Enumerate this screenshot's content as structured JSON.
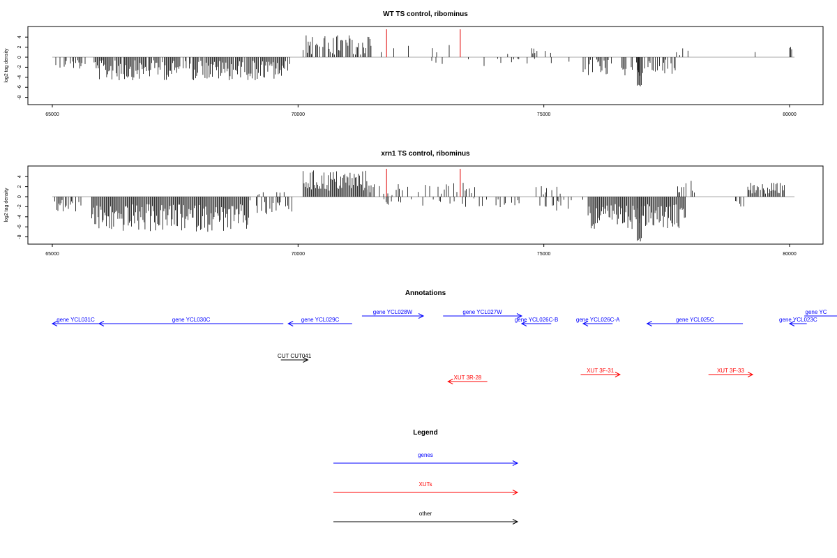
{
  "chart_data": [
    {
      "type": "bar",
      "title": "WT TS control, ribominus",
      "ylabel": "log2 tag density",
      "xlim": [
        64000,
        81000
      ],
      "ylim": [
        -10,
        6
      ],
      "x_ticks": [
        "65000",
        "70000",
        "75000",
        "80000"
      ],
      "y_ticks": [
        "4",
        "2",
        "0",
        "-2",
        "-4",
        "-6",
        "-8"
      ],
      "x_tick_values": [
        65000,
        70000,
        75000,
        80000
      ],
      "y_tick_values": [
        4,
        2,
        0,
        -2,
        -4,
        -6,
        -8
      ],
      "baseline": [
        65000,
        80100
      ],
      "marker_lines": [
        {
          "x": 71800,
          "color": "#e00000"
        },
        {
          "x": 73300,
          "color": "#e00000"
        }
      ],
      "segments": [
        {
          "from": 65050,
          "to": 65700,
          "sign": -1,
          "min": 0.3,
          "max": 2.3,
          "density": 0.55
        },
        {
          "from": 65850,
          "to": 69850,
          "sign": -1,
          "min": 0.6,
          "max": 4.6,
          "density": 0.85
        },
        {
          "from": 70100,
          "to": 71500,
          "sign": 1,
          "min": 0.5,
          "max": 4.5,
          "density": 0.75
        },
        {
          "from": 71500,
          "to": 73500,
          "sign": 1,
          "min": 0.3,
          "max": 2.5,
          "density": 0.12
        },
        {
          "from": 72400,
          "to": 74300,
          "sign": -1,
          "min": 0.3,
          "max": 1.8,
          "density": 0.1
        },
        {
          "from": 74200,
          "to": 75300,
          "sign": 1,
          "min": 0.3,
          "max": 1.9,
          "density": 0.08
        },
        {
          "from": 74300,
          "to": 75800,
          "sign": -1,
          "min": 0.3,
          "max": 1.6,
          "density": 0.1
        },
        {
          "from": 75800,
          "to": 77700,
          "sign": -1,
          "min": 0.4,
          "max": 3.8,
          "density": 0.55
        },
        {
          "from": 76900,
          "to": 77000,
          "sign": -1,
          "min": 5.5,
          "max": 5.8,
          "density": 1
        },
        {
          "from": 77400,
          "to": 78000,
          "sign": 1,
          "min": 0.4,
          "max": 2.0,
          "density": 0.25
        },
        {
          "from": 79300,
          "to": 79320,
          "sign": 1,
          "min": 1.0,
          "max": 1.1,
          "density": 1
        },
        {
          "from": 80000,
          "to": 80050,
          "sign": 1,
          "min": 1.5,
          "max": 2.3,
          "density": 1
        }
      ]
    },
    {
      "type": "bar",
      "title": "xrn1 TS control, ribominus",
      "ylabel": "log2 tag density",
      "xlim": [
        64000,
        81000
      ],
      "ylim": [
        -10,
        6
      ],
      "x_ticks": [
        "65000",
        "70000",
        "75000",
        "80000"
      ],
      "y_ticks": [
        "4",
        "2",
        "0",
        "-2",
        "-4",
        "-6",
        "-8"
      ],
      "x_tick_values": [
        65000,
        70000,
        75000,
        80000
      ],
      "y_tick_values": [
        4,
        2,
        0,
        -2,
        -4,
        -6,
        -8
      ],
      "baseline": [
        65000,
        80100
      ],
      "marker_lines": [
        {
          "x": 71800,
          "color": "#e00000"
        },
        {
          "x": 73300,
          "color": "#e00000"
        }
      ],
      "segments": [
        {
          "from": 65050,
          "to": 65600,
          "sign": -1,
          "min": 0.3,
          "max": 3.0,
          "density": 0.6
        },
        {
          "from": 65800,
          "to": 69000,
          "sign": -1,
          "min": 1.5,
          "max": 7.0,
          "density": 1
        },
        {
          "from": 69000,
          "to": 70000,
          "sign": -1,
          "min": 0.3,
          "max": 3.5,
          "density": 0.55
        },
        {
          "from": 68800,
          "to": 69800,
          "sign": 1,
          "min": 0.3,
          "max": 1.1,
          "density": 0.2
        },
        {
          "from": 70100,
          "to": 71400,
          "sign": 1,
          "min": 1.0,
          "max": 5.3,
          "density": 1
        },
        {
          "from": 71400,
          "to": 73600,
          "sign": 1,
          "min": 0.3,
          "max": 2.8,
          "density": 0.25
        },
        {
          "from": 71600,
          "to": 74500,
          "sign": -1,
          "min": 0.3,
          "max": 2.5,
          "density": 0.25
        },
        {
          "from": 74800,
          "to": 75400,
          "sign": 1,
          "min": 0.3,
          "max": 2.4,
          "density": 0.2
        },
        {
          "from": 74600,
          "to": 75800,
          "sign": -1,
          "min": 0.3,
          "max": 3.0,
          "density": 0.2
        },
        {
          "from": 75900,
          "to": 77900,
          "sign": -1,
          "min": 1.5,
          "max": 6.5,
          "density": 1
        },
        {
          "from": 76900,
          "to": 77000,
          "sign": -1,
          "min": 8.0,
          "max": 9.0,
          "density": 1
        },
        {
          "from": 77700,
          "to": 78100,
          "sign": 1,
          "min": 0.8,
          "max": 3.2,
          "density": 0.5
        },
        {
          "from": 78900,
          "to": 79100,
          "sign": -1,
          "min": 0.5,
          "max": 2.0,
          "density": 0.4
        },
        {
          "from": 79150,
          "to": 79900,
          "sign": 1,
          "min": 0.5,
          "max": 2.8,
          "density": 0.9
        }
      ]
    }
  ],
  "annotations": {
    "title": "Annotations",
    "features": [
      {
        "label": "gene YCL031C",
        "from": 65000,
        "to": 65950,
        "dir": "left",
        "row": 2,
        "color": "#0000ff"
      },
      {
        "label": "gene YCL030C",
        "from": 65950,
        "to": 69700,
        "dir": "left",
        "row": 2,
        "color": "#0000ff"
      },
      {
        "label": "gene YCL029C",
        "from": 69800,
        "to": 71100,
        "dir": "left",
        "row": 2,
        "color": "#0000ff"
      },
      {
        "label": "gene YCL028W",
        "from": 71300,
        "to": 72550,
        "dir": "right",
        "row": 1,
        "color": "#0000ff"
      },
      {
        "label": "gene YCL027W",
        "from": 72950,
        "to": 74550,
        "dir": "right",
        "row": 1,
        "color": "#0000ff"
      },
      {
        "label": "gene YCL026C-B",
        "from": 74550,
        "to": 75150,
        "dir": "left",
        "row": 2,
        "color": "#0000ff"
      },
      {
        "label": "gene YCL026C-A",
        "from": 75800,
        "to": 76400,
        "dir": "left",
        "row": 2,
        "color": "#0000ff"
      },
      {
        "label": "gene YCL025C",
        "from": 77100,
        "to": 79050,
        "dir": "left",
        "row": 2,
        "color": "#0000ff"
      },
      {
        "label": "gene YCL023C",
        "from": 80000,
        "to": 80350,
        "dir": "left",
        "row": 2,
        "color": "#0000ff"
      },
      {
        "label": "gene YC",
        "from": 80300,
        "to": 82200,
        "dir": "right",
        "row": 1,
        "color": "#0000ff"
      },
      {
        "label": "CUT CUT041",
        "from": 69650,
        "to": 70200,
        "dir": "right",
        "row": 3,
        "color": "#000000"
      },
      {
        "label": "XUT 3R-28",
        "from": 73050,
        "to": 73850,
        "dir": "left",
        "row": 5,
        "color": "#ff0000"
      },
      {
        "label": "XUT 3F-31",
        "from": 75750,
        "to": 76550,
        "dir": "right",
        "row": 4,
        "color": "#ff0000"
      },
      {
        "label": "XUT 3F-33",
        "from": 78350,
        "to": 79250,
        "dir": "right",
        "row": 4,
        "color": "#ff0000"
      }
    ]
  },
  "legend": {
    "title": "Legend",
    "items": [
      {
        "label": "genes",
        "color": "#0000ff"
      },
      {
        "label": "XUTs",
        "color": "#ff0000"
      },
      {
        "label": "other",
        "color": "#000000"
      }
    ]
  }
}
